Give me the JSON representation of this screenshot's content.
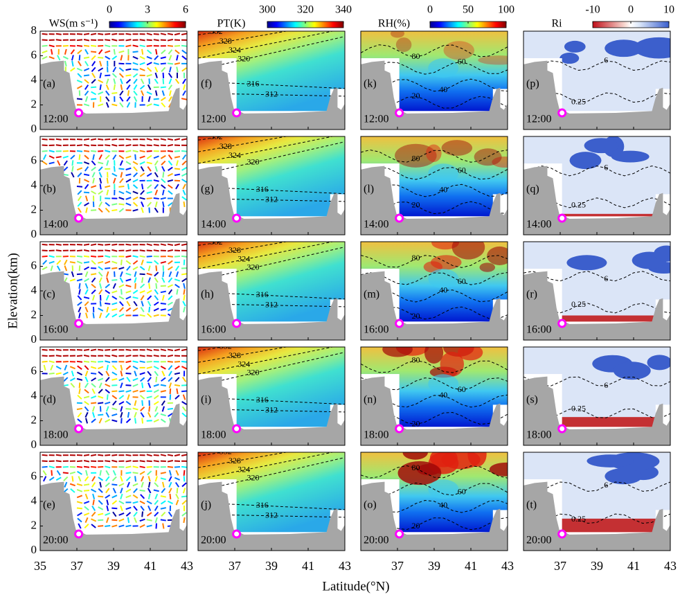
{
  "xlabel": "Latitude(°N)",
  "ylabel": "Elevation(km)",
  "times": [
    "12:00",
    "14:00",
    "16:00",
    "18:00",
    "20:00"
  ],
  "chart_data": [
    {
      "type": "field",
      "title": "WS(m s⁻¹)",
      "colormap": "jet",
      "clim": [
        0,
        6
      ],
      "cticks": [
        0,
        3,
        6
      ],
      "panels": [
        "(a)",
        "(b)",
        "(c)",
        "(d)",
        "(e)"
      ],
      "contours": [],
      "xlim": [
        35,
        43
      ],
      "xticks": [
        35,
        37,
        39,
        41,
        43
      ],
      "ylim": [
        0,
        8
      ],
      "yticks": [
        0,
        2,
        4,
        6,
        8
      ]
    },
    {
      "type": "field",
      "title": "PT(K)",
      "colormap": "jet",
      "clim": [
        300,
        340
      ],
      "cticks": [
        300,
        320,
        340
      ],
      "panels": [
        "(f)",
        "(g)",
        "(h)",
        "(i)",
        "(j)"
      ],
      "contours": [
        332,
        328,
        324,
        320,
        316,
        312
      ],
      "xlim": [
        35,
        43
      ],
      "xticks": [
        37,
        39,
        41,
        43
      ],
      "ylim": [
        0,
        8
      ]
    },
    {
      "type": "field",
      "title": "RH(%)",
      "colormap": "jet",
      "clim": [
        0,
        100
      ],
      "cticks": [
        0,
        50,
        100
      ],
      "panels": [
        "(k)",
        "(l)",
        "(m)",
        "(n)",
        "(o)"
      ],
      "contours": [
        20,
        40,
        60,
        80
      ],
      "xlim": [
        35,
        43
      ],
      "xticks": [
        37,
        39,
        41,
        43
      ],
      "ylim": [
        0,
        8
      ]
    },
    {
      "type": "field",
      "title": "Ri",
      "colormap": "diverging",
      "clim": [
        -10,
        10
      ],
      "cticks": [
        -10,
        0,
        10
      ],
      "panels": [
        "(p)",
        "(q)",
        "(r)",
        "(s)",
        "(t)"
      ],
      "contours": [
        0.25,
        6
      ],
      "xlim": [
        35,
        43
      ],
      "xticks": [
        37,
        39,
        41,
        43
      ],
      "ylim": [
        0,
        8
      ]
    }
  ]
}
